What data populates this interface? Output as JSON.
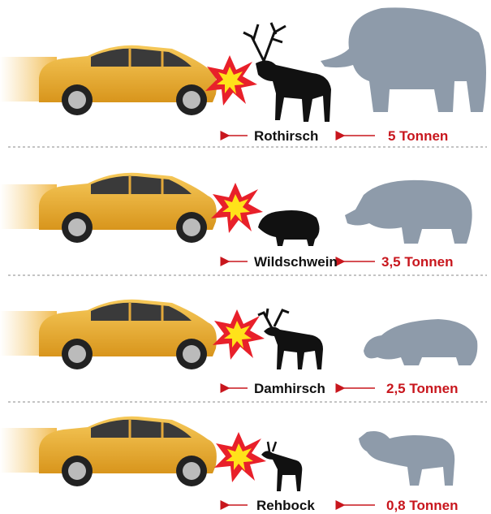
{
  "rows": [
    {
      "animal": "Rothirsch",
      "equivalent": "5 Tonnen"
    },
    {
      "animal": "Wildschwein",
      "equivalent": "3,5 Tonnen"
    },
    {
      "animal": "Damhirsch",
      "equivalent": "2,5 Tonnen"
    },
    {
      "animal": "Rehbock",
      "equivalent": "0,8 Tonnen"
    }
  ]
}
